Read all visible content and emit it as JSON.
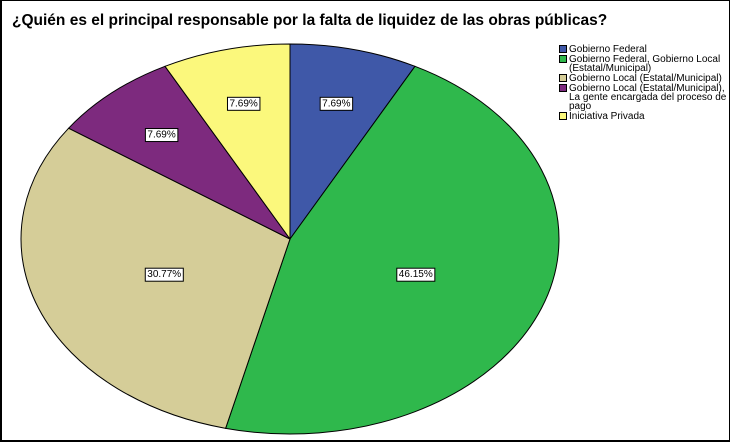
{
  "chart_data": {
    "type": "pie",
    "title": "¿Quién es el principal responsable por la falta de liquidez de las obras públicas?",
    "categories": [
      "Gobierno Federal",
      "Gobierno Federal, Gobierno Local (Estatal/Municipal)",
      "Gobierno Local (Estatal/Municipal)",
      "Gobierno Local (Estatal/Municipal), La gente encargada del proceso de pago",
      "Iniciativa Privada"
    ],
    "values": [
      7.69,
      46.15,
      30.77,
      7.69,
      7.69
    ],
    "value_labels": [
      "7.69%",
      "46.15%",
      "30.77%",
      "7.69%",
      "7.69%"
    ],
    "colors": [
      "#3f58a8",
      "#2fb84c",
      "#d5cd98",
      "#7d2a7e",
      "#fbf87c"
    ],
    "legend": "right"
  }
}
